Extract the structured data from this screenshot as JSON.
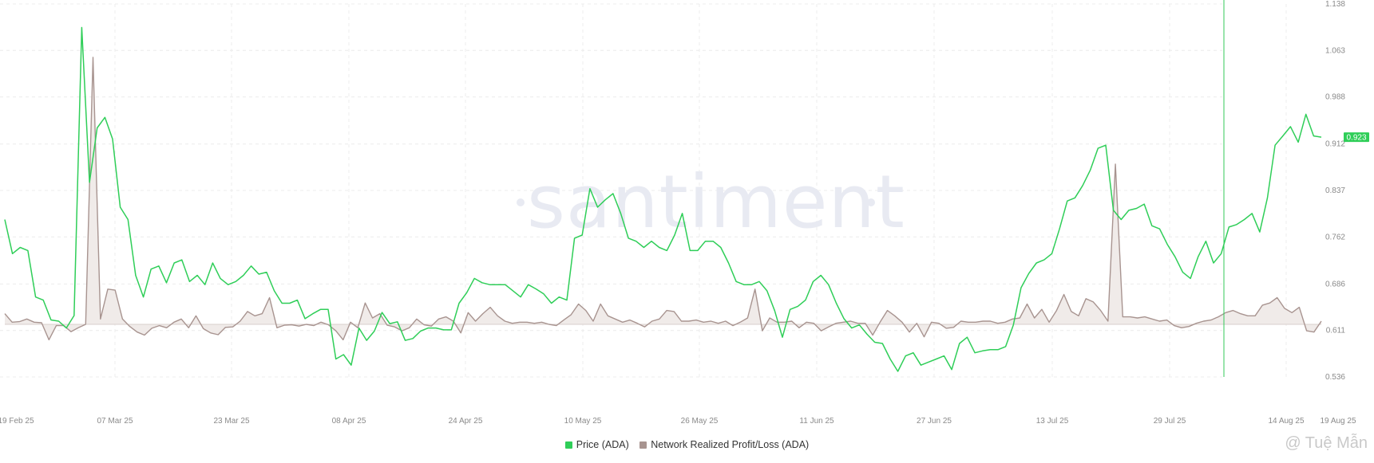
{
  "watermark": "santiment",
  "credit": "@ Tuệ Mẫn",
  "chart_data": {
    "type": "line",
    "x_tick_labels": [
      "19 Feb 25",
      "07 Mar 25",
      "23 Mar 25",
      "08 Apr 25",
      "24 Apr 25",
      "10 May 25",
      "26 May 25",
      "11 Jun 25",
      "27 Jun 25",
      "13 Jul 25",
      "29 Jul 25",
      "14 Aug 25",
      "19 Aug 25"
    ],
    "y_right_ticks": [
      "1.138",
      "1.063",
      "0.988",
      "0.912",
      "0.837",
      "0.762",
      "0.686",
      "0.611",
      "0.536"
    ],
    "ylim_right": [
      0.536,
      1.138
    ],
    "current_price_label": "0.923",
    "grid": true,
    "legend_position": "bottom-center",
    "series": [
      {
        "name": "Price (ADA)",
        "color": "#2fce58",
        "axis": "right",
        "values": [
          0.79,
          0.735,
          0.745,
          0.74,
          0.665,
          0.66,
          0.628,
          0.626,
          0.615,
          0.635,
          1.1,
          0.85,
          0.938,
          0.955,
          0.92,
          0.81,
          0.79,
          0.7,
          0.665,
          0.71,
          0.715,
          0.688,
          0.72,
          0.725,
          0.69,
          0.7,
          0.685,
          0.72,
          0.695,
          0.685,
          0.69,
          0.7,
          0.715,
          0.702,
          0.705,
          0.675,
          0.655,
          0.655,
          0.66,
          0.63,
          0.638,
          0.645,
          0.645,
          0.565,
          0.572,
          0.555,
          0.615,
          0.595,
          0.61,
          0.64,
          0.622,
          0.625,
          0.595,
          0.598,
          0.61,
          0.615,
          0.615,
          0.612,
          0.612,
          0.655,
          0.672,
          0.695,
          0.688,
          0.685,
          0.685,
          0.685,
          0.675,
          0.665,
          0.685,
          0.678,
          0.67,
          0.655,
          0.665,
          0.66,
          0.76,
          0.765,
          0.84,
          0.81,
          0.822,
          0.832,
          0.8,
          0.76,
          0.755,
          0.745,
          0.755,
          0.745,
          0.74,
          0.765,
          0.8,
          0.74,
          0.74,
          0.755,
          0.755,
          0.745,
          0.72,
          0.69,
          0.685,
          0.685,
          0.69,
          0.675,
          0.643,
          0.6,
          0.645,
          0.65,
          0.66,
          0.69,
          0.7,
          0.685,
          0.655,
          0.63,
          0.615,
          0.62,
          0.605,
          0.592,
          0.59,
          0.565,
          0.545,
          0.57,
          0.575,
          0.555,
          0.56,
          0.565,
          0.57,
          0.548,
          0.59,
          0.6,
          0.575,
          0.578,
          0.58,
          0.58,
          0.585,
          0.62,
          0.68,
          0.703,
          0.72,
          0.725,
          0.735,
          0.775,
          0.82,
          0.825,
          0.845,
          0.87,
          0.905,
          0.91,
          0.805,
          0.79,
          0.805,
          0.808,
          0.815,
          0.78,
          0.775,
          0.75,
          0.73,
          0.705,
          0.695,
          0.73,
          0.755,
          0.72,
          0.735,
          0.778,
          0.782,
          0.79,
          0.8,
          0.77,
          0.825,
          0.91,
          0.925,
          0.94,
          0.915,
          0.96,
          0.925,
          0.923
        ]
      },
      {
        "name": "Network Realized Profit/Loss (ADA)",
        "color": "#a89490",
        "fill": "#f0ebe9",
        "axis": "left",
        "baseline": 0,
        "values": [
          1.0,
          0.2,
          0.25,
          0.5,
          0.2,
          0.15,
          -3.6,
          -0.3,
          -0.3,
          -1.7,
          -0.8,
          0,
          25.0,
          0.5,
          3.3,
          3.2,
          0.5,
          -0.5,
          -1.8,
          -2.5,
          -0.9,
          -0.3,
          -0.8,
          0.2,
          0.5,
          -0.8,
          0.8,
          -1.0,
          -2.0,
          -2.4,
          -0.7,
          -0.6,
          0.3,
          1.2,
          0.8,
          1.0,
          2.5,
          -0.8,
          -0.2,
          -0.1,
          -0.4,
          0.0,
          -0.3,
          0.2,
          -0.1,
          -1.5,
          -3.6,
          0.2,
          -0.8,
          2.0,
          0.6,
          1.0,
          -0.2,
          -0.6,
          -1.5,
          -0.8,
          0.5,
          -0.1,
          -0.4,
          0.5,
          0.7,
          0.3,
          -2.0,
          1.1,
          0.3,
          1.0,
          1.6,
          0.8,
          0.3,
          0.1,
          0.2,
          0.2,
          0.1,
          0.2,
          0.0,
          -0.3,
          0.4,
          0.9,
          1.9,
          1.3,
          0.3,
          1.9,
          0.8,
          0.5,
          0.2,
          0.4,
          0.1,
          -0.6,
          0.3,
          0.5,
          1.3,
          1.2,
          0.3,
          0.3,
          0.4,
          0.2,
          0.3,
          0.1,
          0.3,
          -0.3,
          0.2,
          0.6,
          3.3,
          -1.5,
          0.6,
          0.2,
          0.2,
          0.3,
          -0.8,
          0.2,
          0.1,
          -1.5,
          -0.6,
          0.1,
          0.2,
          0.3,
          0.1,
          0.1,
          -2.5,
          0.2,
          1.3,
          0.8,
          0.2,
          -1.8,
          0.1,
          -2.9,
          0.2,
          0.1,
          -0.9,
          -0.7,
          0.3,
          0.2,
          0.2,
          0.3,
          0.3,
          0.1,
          0.2,
          0.5,
          0.6,
          1.9,
          0.6,
          1.4,
          0.2,
          1.3,
          2.8,
          1.2,
          0.8,
          2.4,
          2.1,
          1.3,
          0.3,
          15.0,
          0.7,
          0.7,
          0.6,
          0.7,
          0.5,
          0.3,
          0.4,
          -0.3,
          -0.8,
          -0.5,
          0.1,
          0.3,
          0.4,
          0.7,
          1.1,
          1.3,
          1.0,
          0.8,
          0.8,
          1.8,
          2.0,
          2.5,
          1.5,
          1.1,
          1.6,
          -1.5,
          -1.8,
          0.3
        ]
      }
    ]
  }
}
